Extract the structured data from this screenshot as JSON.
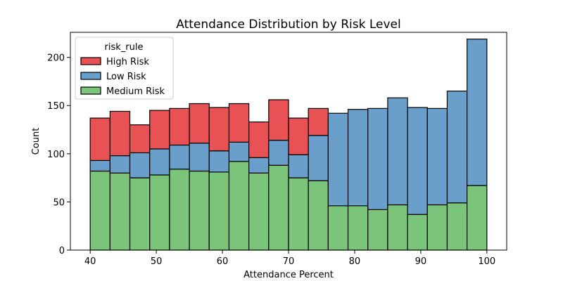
{
  "chart_data": {
    "type": "bar",
    "stacked": true,
    "title": "Attendance Distribution by Risk Level",
    "xlabel": "Attendance Percent",
    "ylabel": "Count",
    "xlim": [
      37,
      103
    ],
    "ylim": [
      0,
      226
    ],
    "x_ticks": [
      40,
      50,
      60,
      70,
      80,
      90,
      100
    ],
    "y_ticks": [
      0,
      50,
      100,
      150,
      200
    ],
    "bin_edges": [
      40,
      43,
      46,
      49,
      52,
      55,
      58,
      61,
      64,
      67,
      70,
      73,
      76,
      79,
      82,
      85,
      88,
      91,
      94,
      97,
      100
    ],
    "grid": false,
    "legend": {
      "title": "risk_rule",
      "position": "top-left",
      "entries": [
        "High Risk",
        "Low Risk",
        "Medium Risk"
      ]
    },
    "series": [
      {
        "name": "Medium Risk",
        "color": "#7ac57a",
        "values": [
          82,
          80,
          75,
          78,
          84,
          82,
          81,
          92,
          80,
          88,
          75,
          72,
          46,
          46,
          42,
          47,
          37,
          47,
          49,
          67
        ]
      },
      {
        "name": "Low Risk",
        "color": "#6a9fcb",
        "values": [
          11,
          18,
          26,
          27,
          25,
          29,
          22,
          20,
          16,
          26,
          24,
          47,
          96,
          100,
          105,
          111,
          111,
          100,
          116,
          152
        ]
      },
      {
        "name": "High Risk",
        "color": "#e85255",
        "values": [
          44,
          46,
          29,
          40,
          38,
          41,
          45,
          40,
          37,
          42,
          38,
          28,
          0,
          0,
          0,
          0,
          0,
          0,
          0,
          0
        ]
      }
    ]
  }
}
